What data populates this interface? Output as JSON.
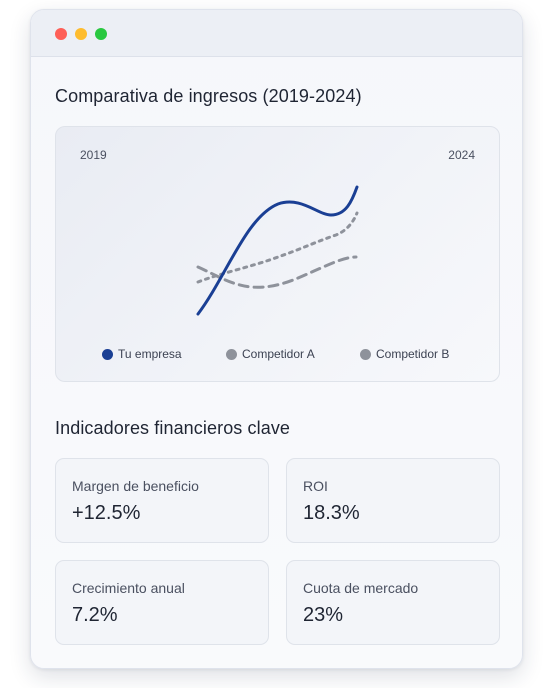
{
  "window": {
    "controls": [
      "close",
      "minimize",
      "maximize"
    ]
  },
  "revenue": {
    "title": "Comparativa de ingresos (2019-2024)",
    "year_start": "2019",
    "year_end": "2024"
  },
  "chart_data": {
    "type": "line",
    "title": "Comparativa de ingresos (2019-2024)",
    "x_range": [
      "2019",
      "2024"
    ],
    "series": [
      {
        "name": "Tu empresa",
        "color": "#1a3f94",
        "style": "solid"
      },
      {
        "name": "Competidor A",
        "color": "#8e929b",
        "style": "dashed"
      },
      {
        "name": "Competidor B",
        "color": "#8e929b",
        "style": "dotted"
      }
    ]
  },
  "kpis": {
    "title": "Indicadores financieros clave",
    "items": [
      {
        "label": "Margen de beneficio",
        "value": "+12.5%"
      },
      {
        "label": "ROI",
        "value": "18.3%"
      },
      {
        "label": "Crecimiento anual",
        "value": "7.2%"
      },
      {
        "label": "Cuota de mercado",
        "value": "23%"
      }
    ]
  }
}
